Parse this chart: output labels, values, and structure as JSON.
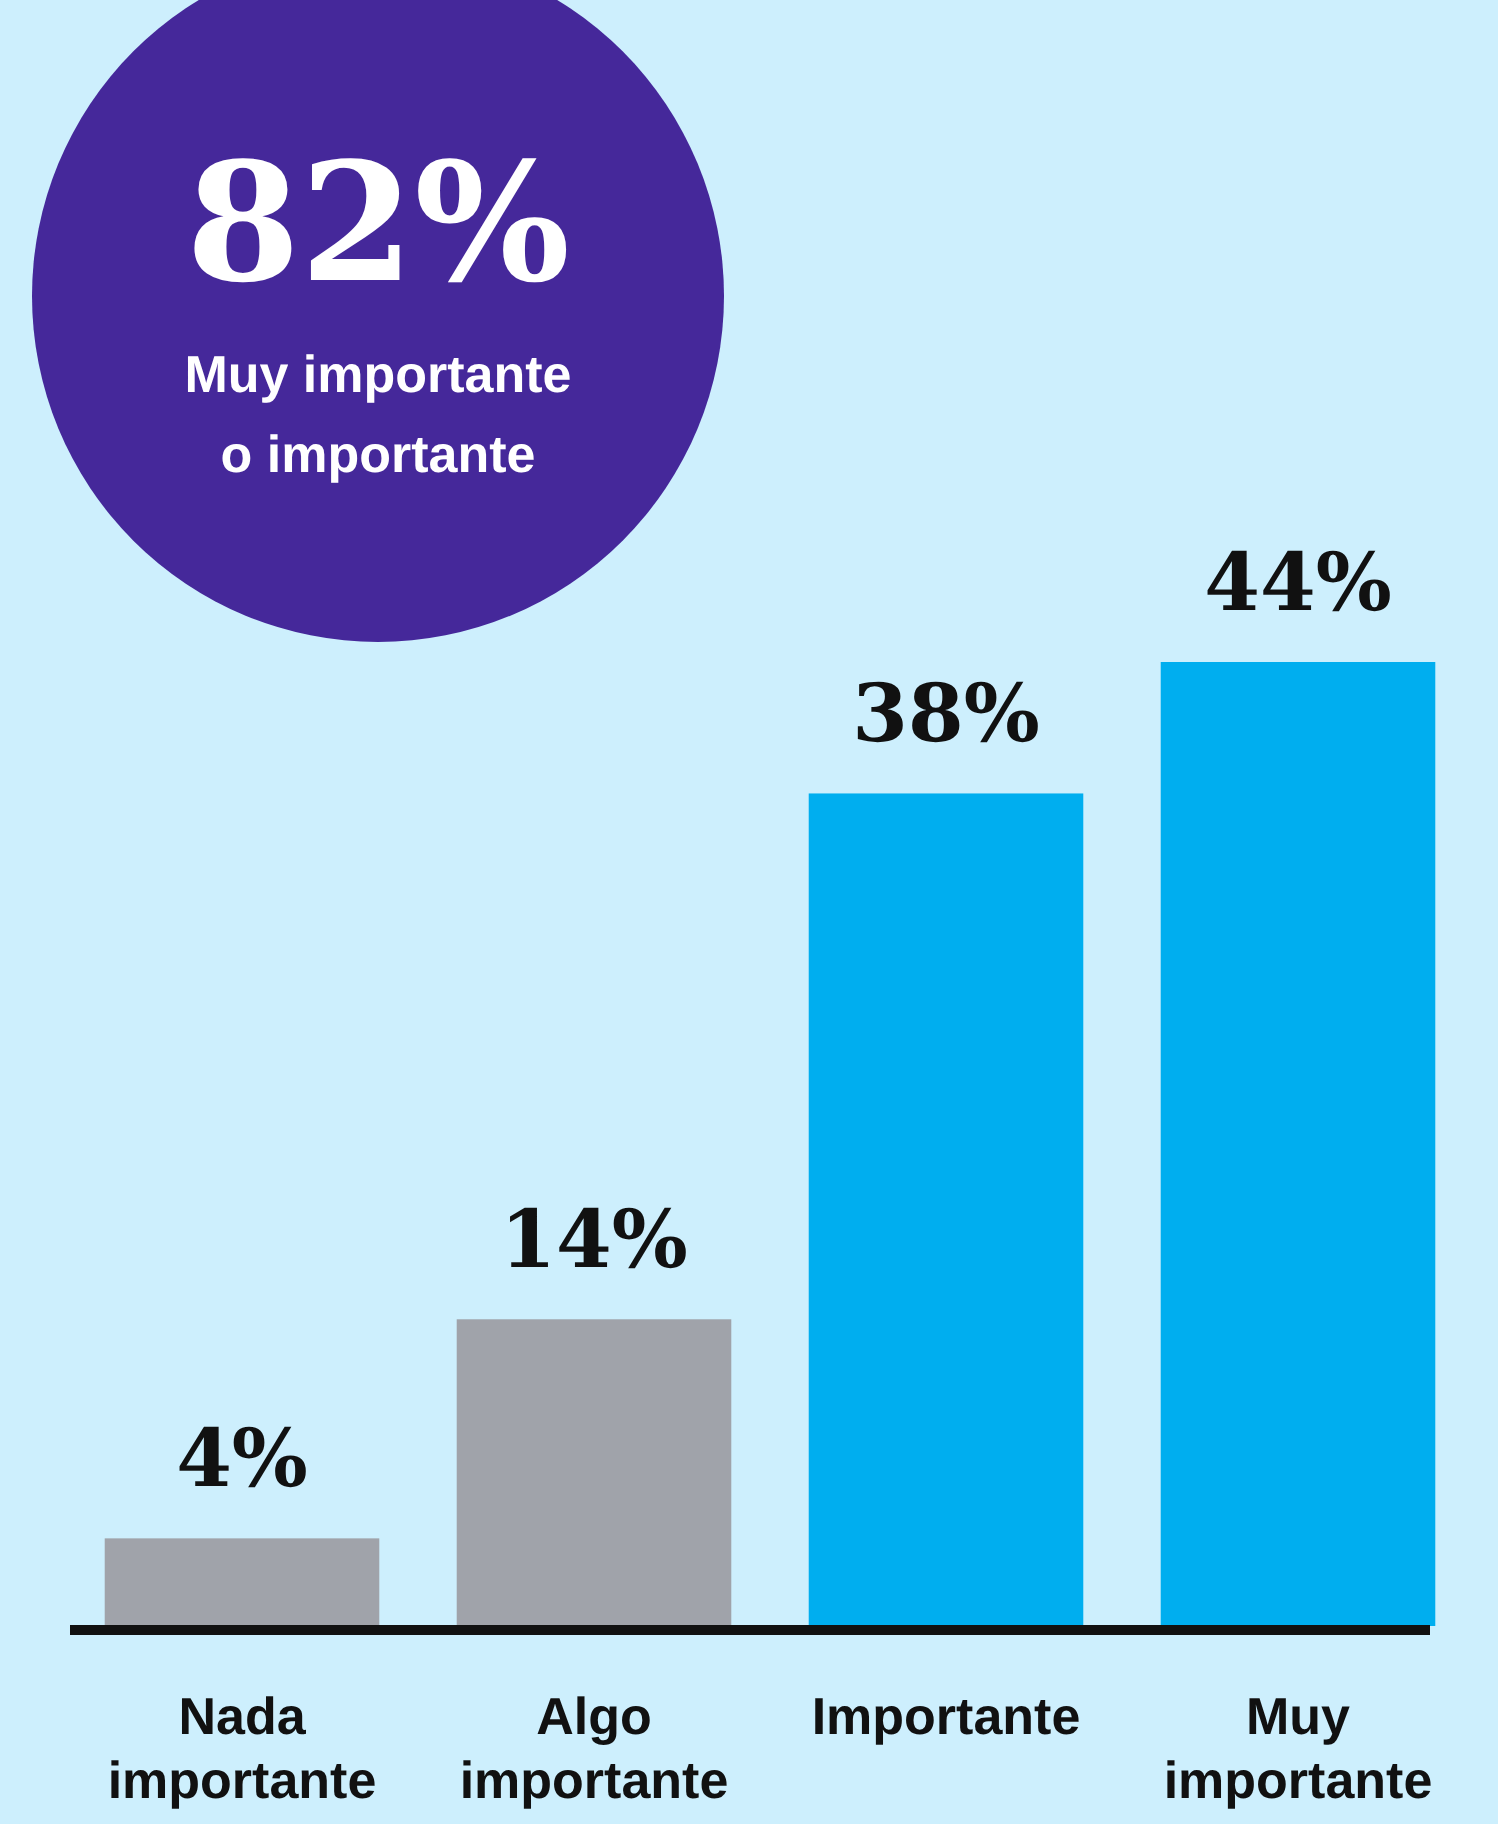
{
  "chart_data": {
    "type": "bar",
    "categories": [
      "Nada importante",
      "Algo importante",
      "Importante",
      "Muy importante"
    ],
    "values": [
      4,
      14,
      38,
      44
    ],
    "colors": [
      "#a0a3aa",
      "#a0a3aa",
      "#00aeef",
      "#00aeef"
    ],
    "value_labels": [
      "4%",
      "14%",
      "38%",
      "44%"
    ],
    "annotations": [
      "82%",
      "Muy importante o importante"
    ],
    "grid": false
  }
}
